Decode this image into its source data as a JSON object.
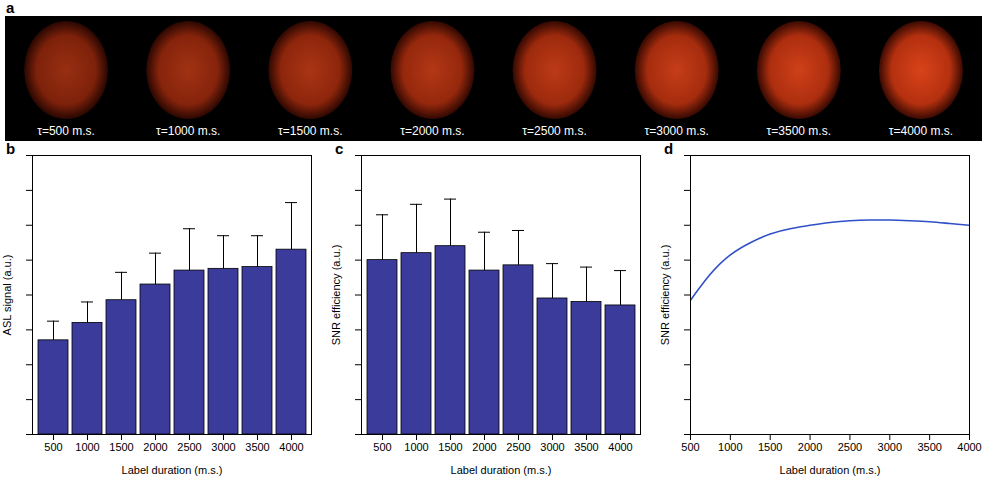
{
  "chart_data": [
    {
      "panel": "b",
      "type": "bar",
      "categories": [
        "500",
        "1000",
        "1500",
        "2000",
        "2500",
        "3000",
        "3500",
        "4000"
      ],
      "values": [
        2.7,
        3.2,
        3.85,
        4.3,
        4.7,
        4.75,
        4.8,
        5.3
      ],
      "errors": [
        0.55,
        0.6,
        0.8,
        0.9,
        1.2,
        0.95,
        0.9,
        1.35
      ],
      "color": "#3b3b9c",
      "xlabel": "Label duration (m.s.)",
      "ylabel": "ASL signal (a.u.)",
      "ylim": [
        0,
        8
      ],
      "yticks": [
        0,
        1,
        2,
        3,
        4,
        5,
        6,
        7,
        8
      ],
      "tick_labels": "x"
    },
    {
      "panel": "c",
      "type": "bar",
      "categories": [
        "500",
        "1000",
        "1500",
        "2000",
        "2500",
        "3000",
        "3500",
        "4000"
      ],
      "values": [
        5.0,
        5.2,
        5.4,
        4.7,
        4.85,
        3.9,
        3.8,
        3.7
      ],
      "errors": [
        1.3,
        1.4,
        1.35,
        1.1,
        1.0,
        1.0,
        1.0,
        1.0
      ],
      "color": "#3b3b9c",
      "xlabel": "Label duration (m.s.)",
      "ylabel": "SNR efficiency (a.u.)",
      "ylim": [
        0,
        8
      ],
      "yticks": [
        0,
        1,
        2,
        3,
        4,
        5,
        6,
        7,
        8
      ],
      "tick_labels": "x"
    },
    {
      "panel": "d",
      "type": "line",
      "x": [
        500,
        750,
        1000,
        1250,
        1500,
        1750,
        2000,
        2250,
        2500,
        2750,
        3000,
        3250,
        3500,
        3750,
        4000
      ],
      "values": [
        3.85,
        4.6,
        5.15,
        5.5,
        5.75,
        5.9,
        6.0,
        6.08,
        6.13,
        6.15,
        6.15,
        6.13,
        6.1,
        6.05,
        6.0
      ],
      "color": "#2f4fc8",
      "xlabel": "Label duration (m.s.)",
      "ylabel": "SNR efficiency (a.u.)",
      "xlim": [
        500,
        4000
      ],
      "xticks": [
        500,
        1000,
        1500,
        2000,
        2500,
        3000,
        3500,
        4000
      ],
      "ylim": [
        0,
        8
      ],
      "yticks": [
        0,
        1,
        2,
        3,
        4,
        5,
        6,
        7,
        8
      ],
      "tick_labels": "x"
    }
  ],
  "image_strip": {
    "panel": "a",
    "labels": [
      "τ=500 m.s.",
      "τ=1000 m.s.",
      "τ=1500 m.s.",
      "τ=2000 m.s.",
      "τ=2500 m.s.",
      "τ=3000 m.s.",
      "τ=3500 m.s.",
      "τ=4000 m.s."
    ]
  }
}
